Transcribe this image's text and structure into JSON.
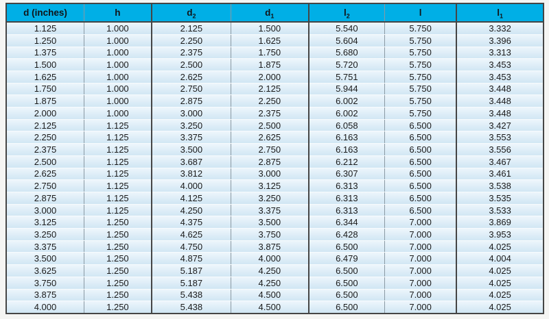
{
  "chart_data": {
    "type": "table",
    "title": "",
    "columns": [
      {
        "base": "d (inches)",
        "sub": ""
      },
      {
        "base": "h",
        "sub": ""
      },
      {
        "base": "d",
        "sub": "2"
      },
      {
        "base": "d",
        "sub": "1"
      },
      {
        "base": "l",
        "sub": "2"
      },
      {
        "base": "l",
        "sub": ""
      },
      {
        "base": "l",
        "sub": "1"
      }
    ],
    "rows": [
      [
        "1.125",
        "1.000",
        "2.125",
        "1.500",
        "5.540",
        "5.750",
        "3.332"
      ],
      [
        "1.250",
        "1.000",
        "2.250",
        "1.625",
        "5.604",
        "5.750",
        "3.396"
      ],
      [
        "1.375",
        "1.000",
        "2.375",
        "1.750",
        "5.680",
        "5.750",
        "3.313"
      ],
      [
        "1.500",
        "1.000",
        "2.500",
        "1.875",
        "5.720",
        "5.750",
        "3.453"
      ],
      [
        "1.625",
        "1.000",
        "2.625",
        "2.000",
        "5.751",
        "5.750",
        "3.453"
      ],
      [
        "1.750",
        "1.000",
        "2.750",
        "2.125",
        "5.944",
        "5.750",
        "3.448"
      ],
      [
        "1.875",
        "1.000",
        "2.875",
        "2.250",
        "6.002",
        "5.750",
        "3.448"
      ],
      [
        "2.000",
        "1.000",
        "3.000",
        "2.375",
        "6.002",
        "5.750",
        "3.448"
      ],
      [
        "2.125",
        "1.125",
        "3.250",
        "2.500",
        "6.058",
        "6.500",
        "3.427"
      ],
      [
        "2.250",
        "1.125",
        "3.375",
        "2.625",
        "6.163",
        "6.500",
        "3.553"
      ],
      [
        "2.375",
        "1.125",
        "3.500",
        "2.750",
        "6.163",
        "6.500",
        "3.556"
      ],
      [
        "2.500",
        "1.125",
        "3.687",
        "2.875",
        "6.212",
        "6.500",
        "3.467"
      ],
      [
        "2.625",
        "1.125",
        "3.812",
        "3.000",
        "6.307",
        "6.500",
        "3.461"
      ],
      [
        "2.750",
        "1.125",
        "4.000",
        "3.125",
        "6.313",
        "6.500",
        "3.538"
      ],
      [
        "2.875",
        "1.125",
        "4.125",
        "3.250",
        "6.313",
        "6.500",
        "3.535"
      ],
      [
        "3.000",
        "1.125",
        "4.250",
        "3.375",
        "6.313",
        "6.500",
        "3.533"
      ],
      [
        "3.125",
        "1.250",
        "4.375",
        "3.500",
        "6.344",
        "7.000",
        "3.869"
      ],
      [
        "3.250",
        "1.250",
        "4.625",
        "3.750",
        "6.428",
        "7.000",
        "3.953"
      ],
      [
        "3.375",
        "1.250",
        "4.750",
        "3.875",
        "6.500",
        "7.000",
        "4.025"
      ],
      [
        "3.500",
        "1.250",
        "4.875",
        "4.000",
        "6.479",
        "7.000",
        "4.004"
      ],
      [
        "3.625",
        "1.250",
        "5.187",
        "4.250",
        "6.500",
        "7.000",
        "4.025"
      ],
      [
        "3.750",
        "1.250",
        "5.187",
        "4.250",
        "6.500",
        "7.000",
        "4.025"
      ],
      [
        "3.875",
        "1.250",
        "5.438",
        "4.500",
        "6.500",
        "7.000",
        "4.025"
      ],
      [
        "4.000",
        "1.250",
        "5.438",
        "4.500",
        "6.500",
        "7.000",
        "4.025"
      ]
    ],
    "layout": {
      "legend": "none",
      "grid": "ruled table",
      "column_group_separators_after": [
        "h",
        "d1",
        "l"
      ]
    }
  },
  "colors": {
    "header_bg": "#00afe6",
    "header_text": "#101418",
    "border_dark": "#454545",
    "border_thin": "#8a99a3",
    "row_top": "#eef6fc",
    "row_bottom": "#d2e7f4",
    "row_separator": "#f7fbfd",
    "cell_text": "#1a1a1a",
    "page_bg": "#f5f5f3"
  }
}
